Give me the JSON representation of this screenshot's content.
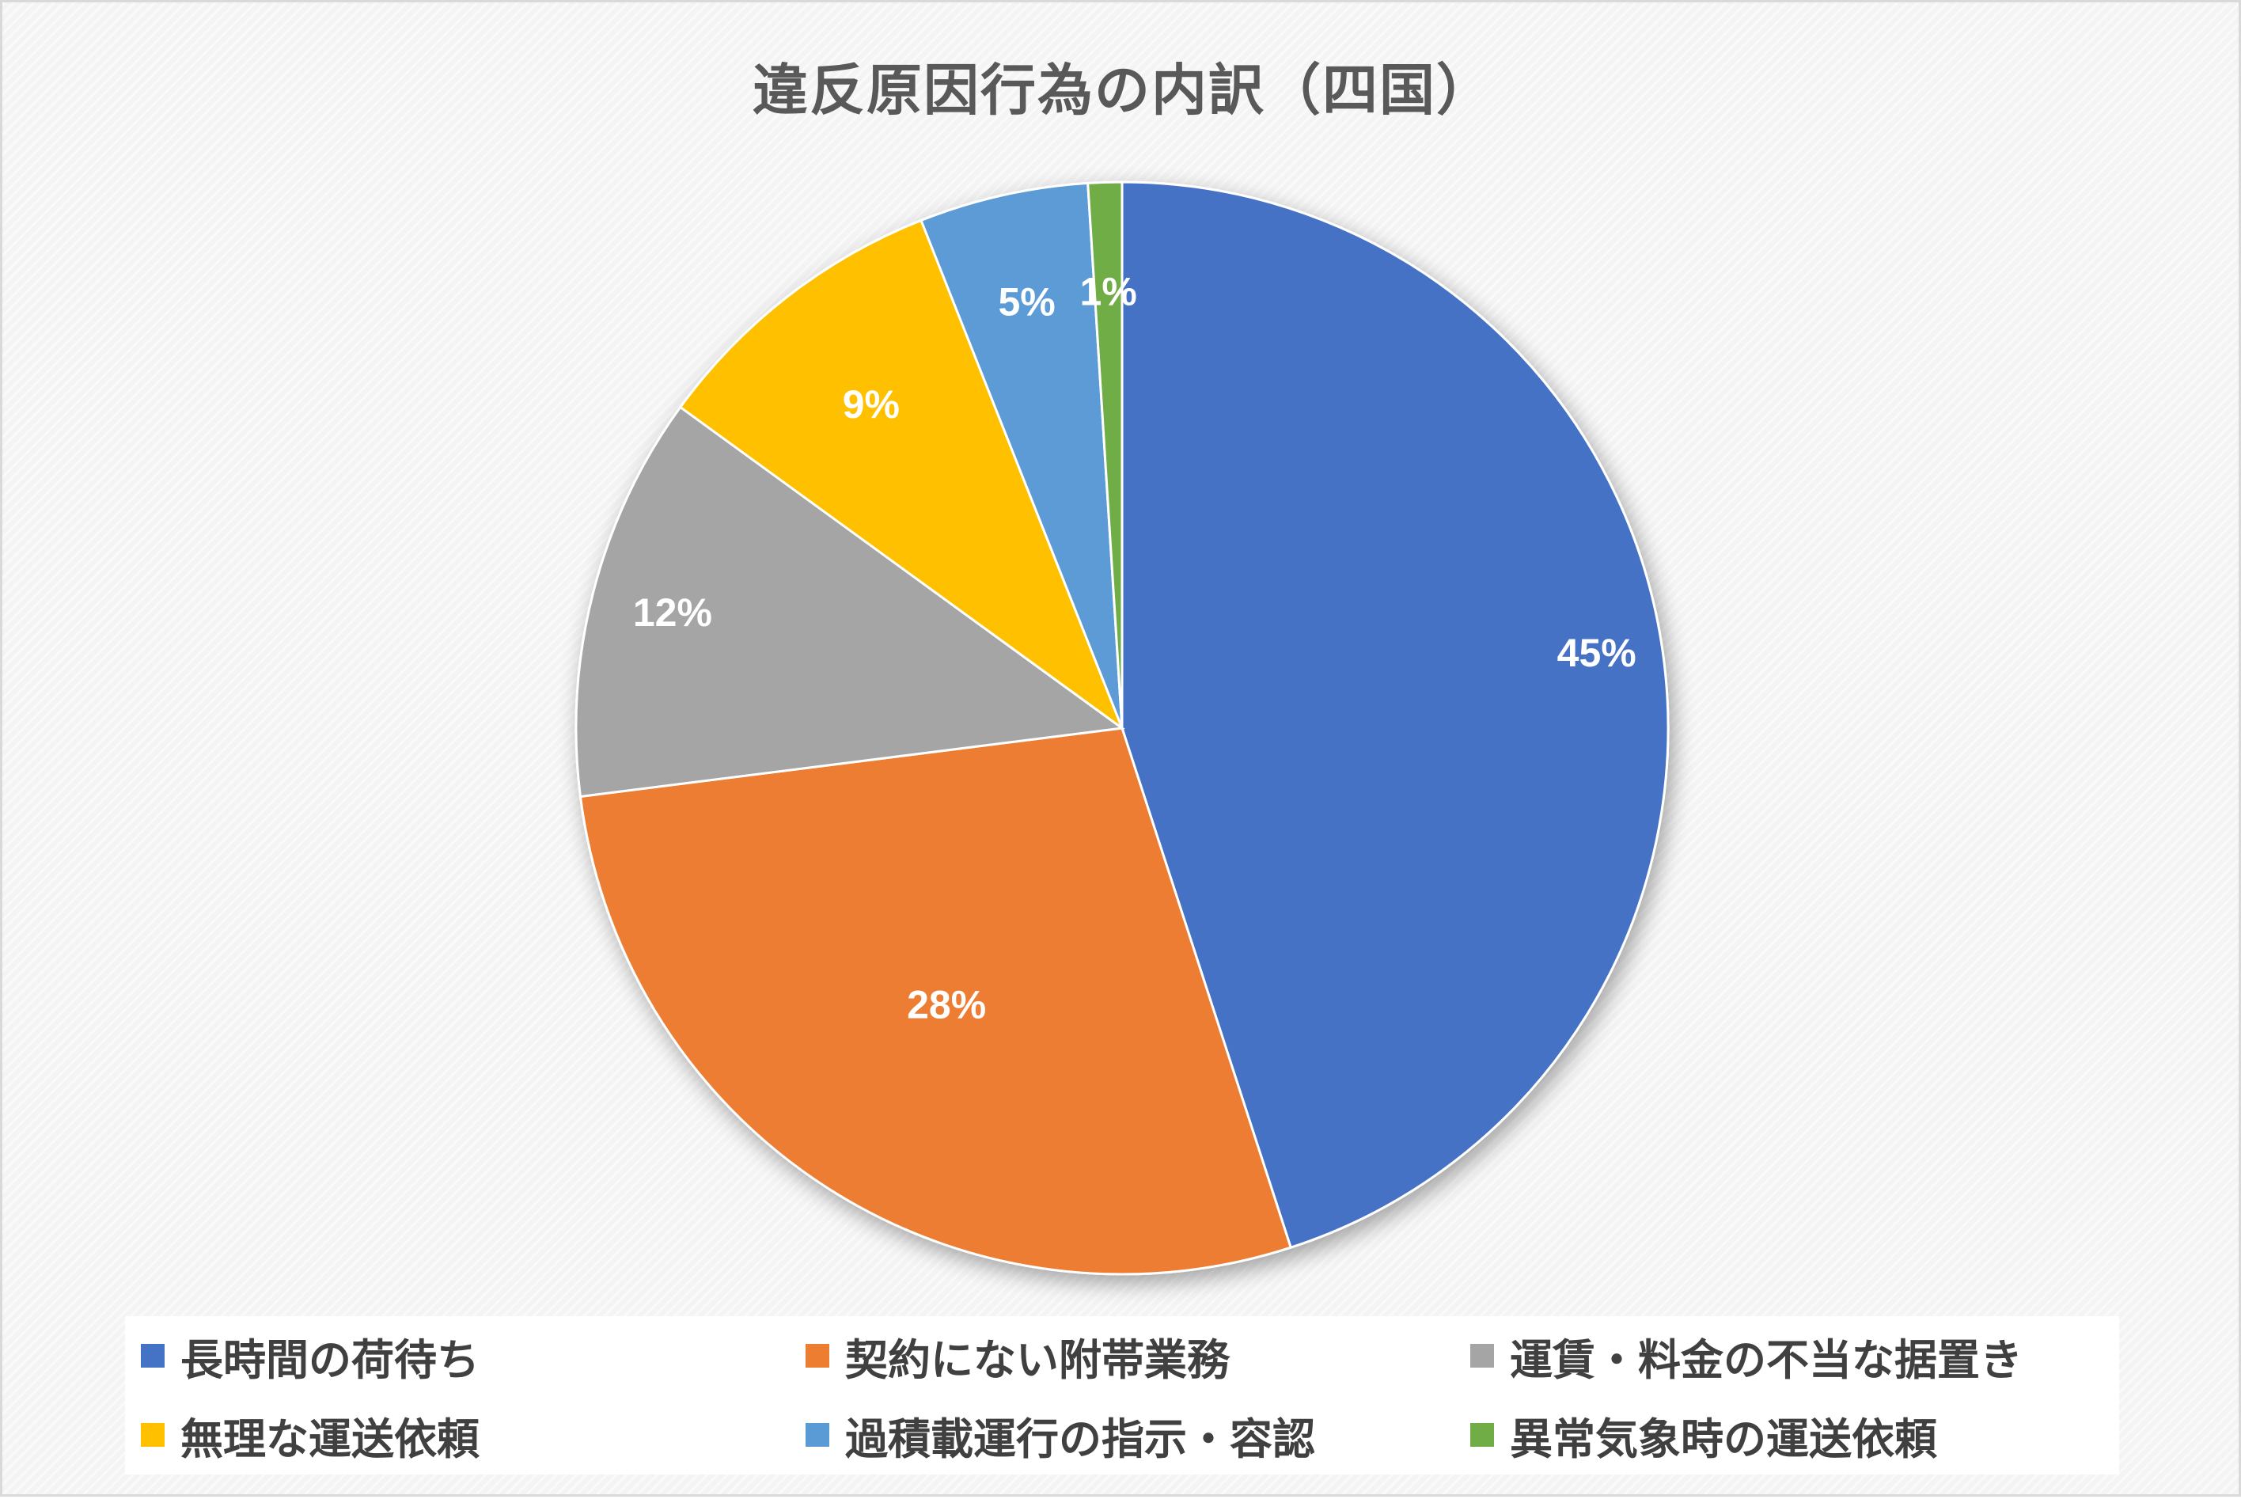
{
  "chart_data": {
    "type": "pie",
    "title": "違反原因行為の内訳（四国）",
    "categories": [
      "長時間の荷待ち",
      "契約にない附帯業務",
      "運賃・料金の不当な据置き",
      "無理な運送依頼",
      "過積載運行の指示・容認",
      "異常気象時の運送依頼"
    ],
    "values": [
      45,
      28,
      12,
      9,
      5,
      1
    ],
    "value_labels": [
      "45%",
      "28%",
      "12%",
      "9%",
      "5%",
      "1%"
    ],
    "colors": [
      "#4472C4",
      "#ED7D31",
      "#A5A5A5",
      "#FFC000",
      "#5B9BD5",
      "#70AD47"
    ],
    "legend_position": "bottom"
  }
}
